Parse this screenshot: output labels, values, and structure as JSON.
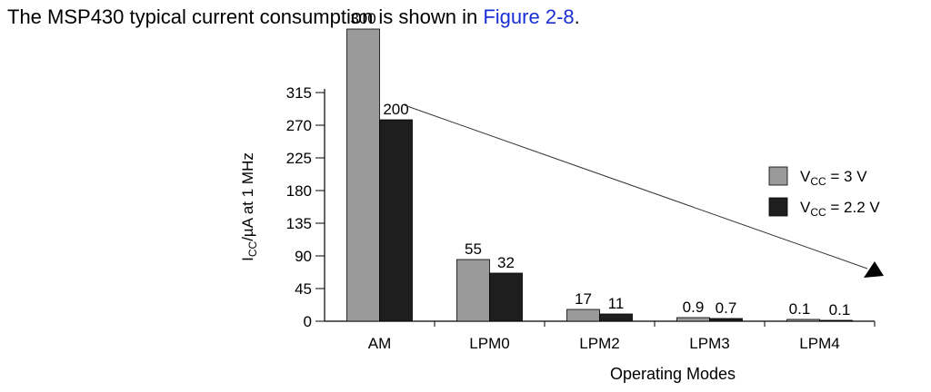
{
  "intro": {
    "text": "The MSP430 typical current consumption is shown in ",
    "link": "Figure 2-8",
    "end": "."
  },
  "chart_data": {
    "type": "bar",
    "categories": [
      "AM",
      "LPM0",
      "LPM2",
      "LPM3",
      "LPM4"
    ],
    "series": [
      {
        "name": "V_CC = 3 V",
        "values": [
          300,
          55,
          17,
          0.9,
          0.1
        ],
        "labels": [
          "300",
          "55",
          "17",
          "0.9",
          "0.1"
        ],
        "color": "#9a9a9a"
      },
      {
        "name": "V_CC = 2.2 V",
        "values": [
          200,
          32,
          11,
          0.7,
          0.1
        ],
        "labels": [
          "200",
          "32",
          "11",
          "0.7",
          "0.1"
        ],
        "color": "#1e1e1e"
      }
    ],
    "bar_heights_drawn": [
      [
        322,
        68,
        13,
        4,
        2
      ],
      [
        222,
        53,
        8,
        3,
        1
      ]
    ],
    "xlabel": "Operating Modes",
    "ylabel": "ICC/µA at 1 MHz",
    "ylabel_main": "I",
    "ylabel_sub": "CC",
    "ylabel_rest": "/µA at 1 MHz",
    "yticks": [
      0,
      45,
      90,
      135,
      180,
      225,
      270,
      315
    ],
    "ylim": [
      0,
      315
    ],
    "legend": [
      {
        "main": "V",
        "sub": "CC",
        "rest": " = 3 V"
      },
      {
        "main": "V",
        "sub": "CC",
        "rest": " = 2.2 V"
      }
    ],
    "legend_position": "right",
    "annotation": "downward trend arrow from AM to LPM4",
    "grid": false
  }
}
